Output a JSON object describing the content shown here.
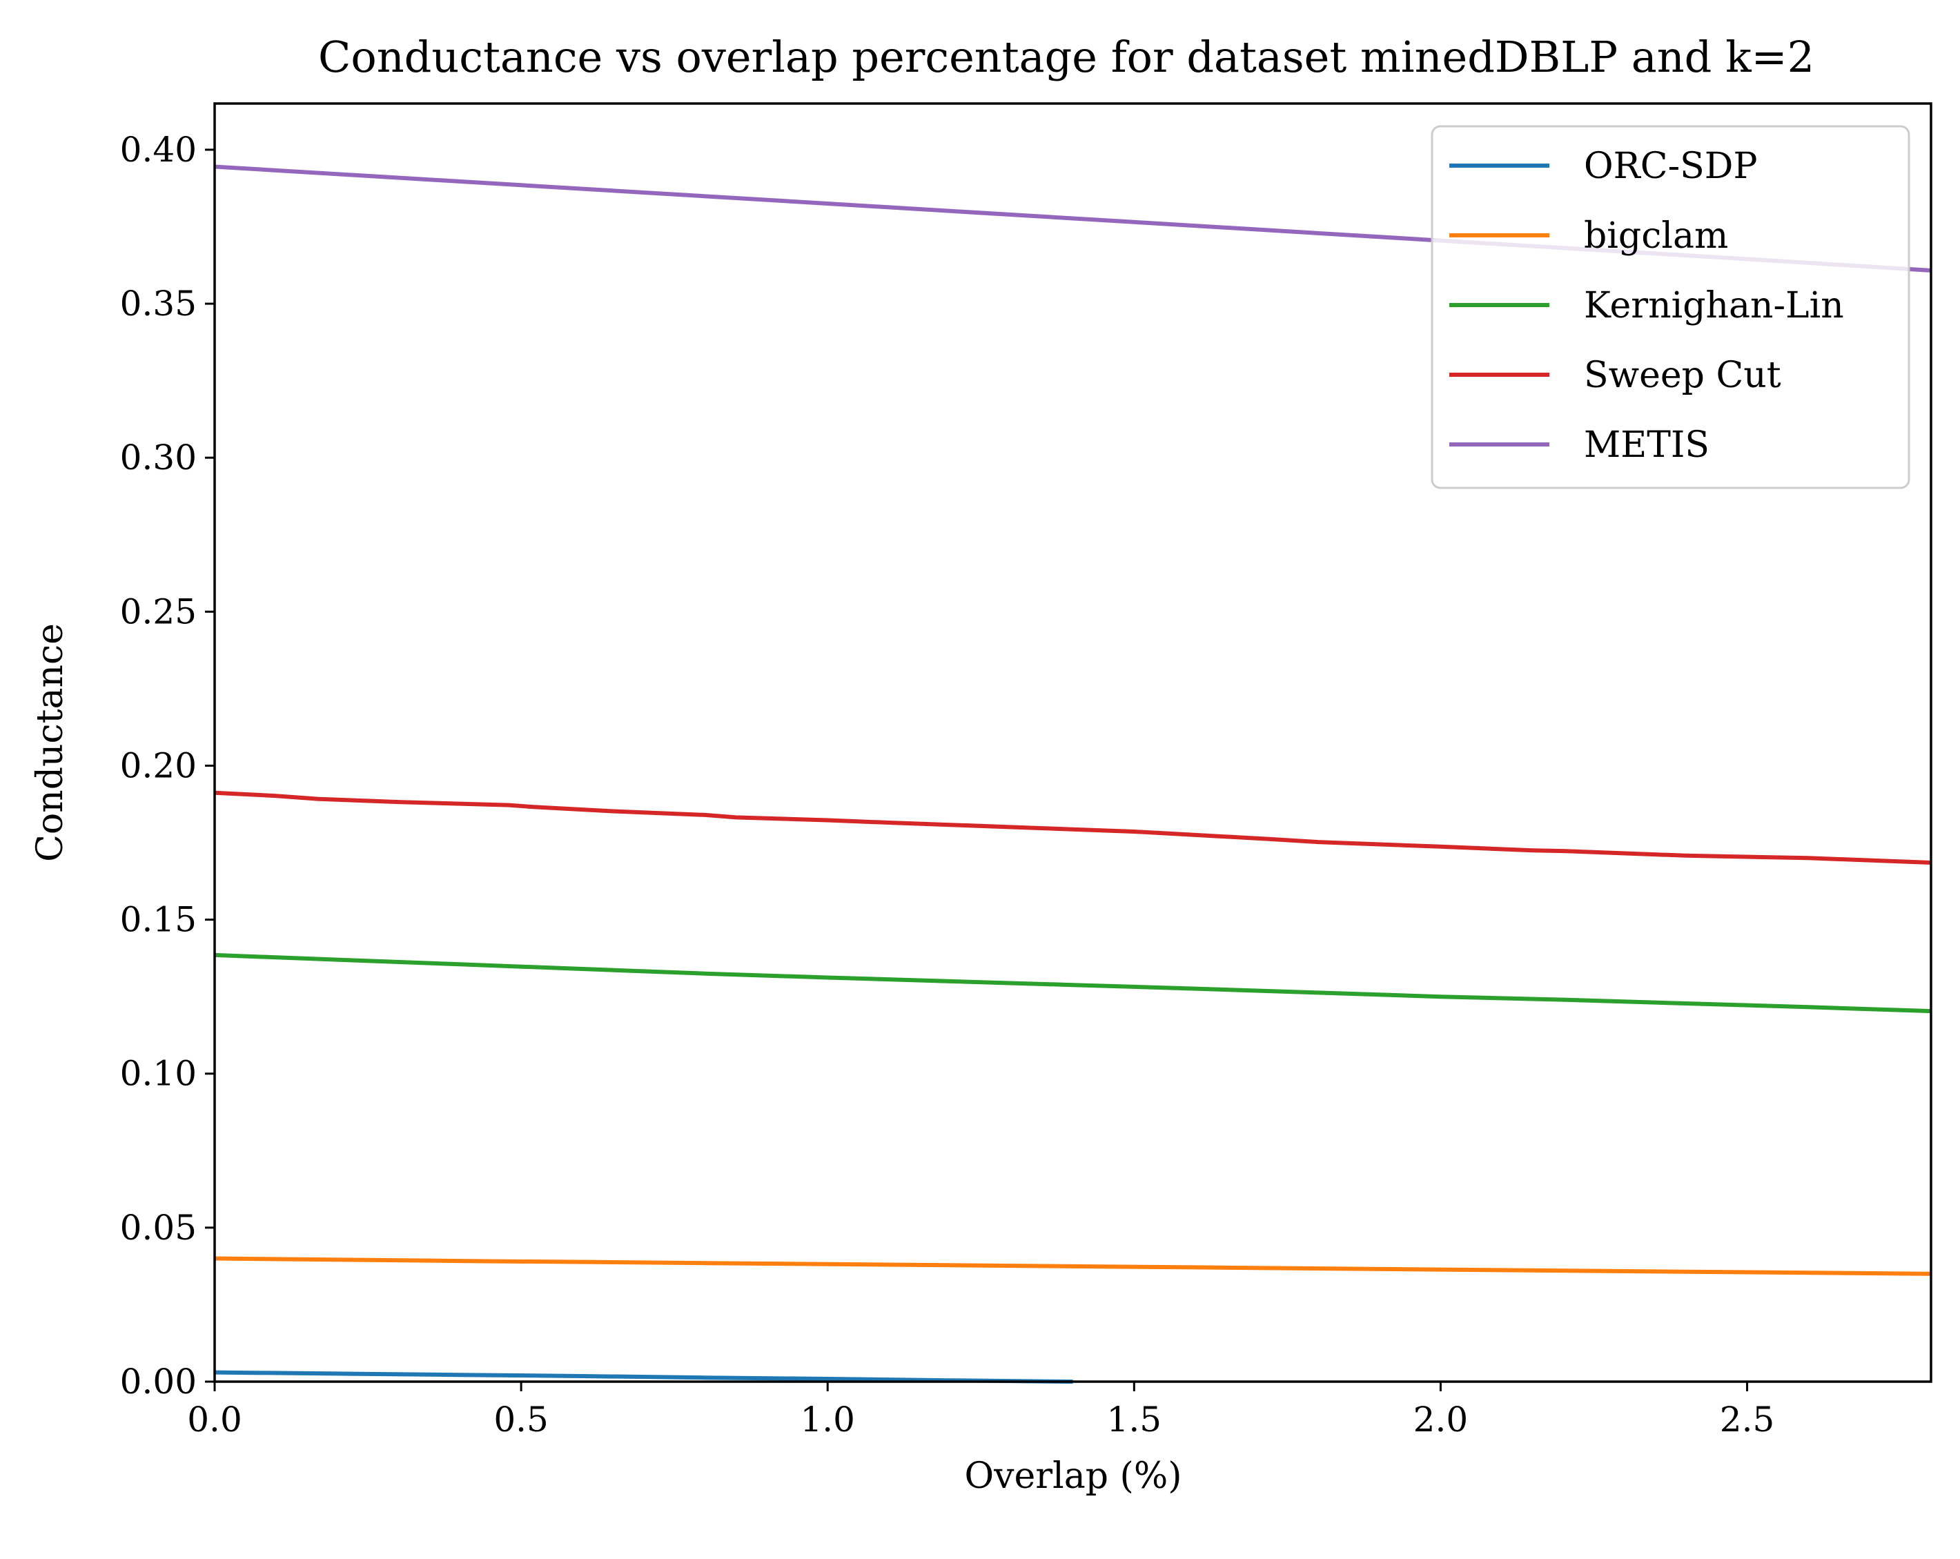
{
  "chart_data": {
    "type": "line",
    "title": "Conductance vs overlap percentage for dataset minedDBLP and k=2",
    "xlabel": "Overlap (%)",
    "ylabel": "Conductance",
    "xlim": [
      0,
      2.8
    ],
    "ylim": [
      0,
      0.415
    ],
    "xticks": [
      0,
      0.5,
      1.0,
      1.5,
      2.0,
      2.5
    ],
    "xtick_labels": [
      "0.0",
      "0.5",
      "1.0",
      "1.5",
      "2.0",
      "2.5"
    ],
    "yticks": [
      0,
      0.05,
      0.1,
      0.15,
      0.2,
      0.25,
      0.3,
      0.35,
      0.4
    ],
    "ytick_labels": [
      "0.00",
      "0.05",
      "0.10",
      "0.15",
      "0.20",
      "0.25",
      "0.30",
      "0.35",
      "0.40"
    ],
    "grid": false,
    "legend_position": "top-right",
    "series": [
      {
        "name": "ORC-SDP",
        "color": "#1f77b4",
        "x": [
          0,
          0.2,
          0.4,
          0.6,
          0.8,
          1.0,
          1.2,
          1.4
        ],
        "y": [
          0.003,
          0.0026,
          0.0022,
          0.0018,
          0.0013,
          0.0009,
          0.0004,
          0.0
        ]
      },
      {
        "name": "bigclam",
        "color": "#ff7f0e",
        "x": [
          0,
          0.4,
          0.8,
          1.2,
          1.6,
          2.0,
          2.4,
          2.8
        ],
        "y": [
          0.04,
          0.0392,
          0.0385,
          0.0378,
          0.0371,
          0.0364,
          0.0357,
          0.035
        ]
      },
      {
        "name": "Kernighan-Lin",
        "color": "#2ca02c",
        "x": [
          0,
          0.2,
          0.4,
          0.6,
          0.8,
          1.0,
          1.2,
          1.4,
          1.6,
          1.8,
          2.0,
          2.2,
          2.4,
          2.6,
          2.8
        ],
        "y": [
          0.1385,
          0.137,
          0.1355,
          0.134,
          0.1325,
          0.1312,
          0.13,
          0.1288,
          0.1276,
          0.1263,
          0.125,
          0.124,
          0.1228,
          0.1216,
          0.1203
        ]
      },
      {
        "name": "Sweep Cut",
        "color": "#d62728",
        "x": [
          0,
          0.1,
          0.17,
          0.3,
          0.48,
          0.52,
          0.65,
          0.8,
          0.85,
          1.0,
          1.1,
          1.2,
          1.35,
          1.5,
          1.6,
          1.72,
          1.8,
          2.0,
          2.15,
          2.2,
          2.4,
          2.6,
          2.8
        ],
        "y": [
          0.1912,
          0.1902,
          0.1892,
          0.1882,
          0.1872,
          0.1866,
          0.1852,
          0.184,
          0.1832,
          0.1823,
          0.1815,
          0.1808,
          0.1797,
          0.1786,
          0.1775,
          0.1762,
          0.1752,
          0.1737,
          0.1725,
          0.1723,
          0.1708,
          0.17,
          0.1685
        ]
      },
      {
        "name": "METIS",
        "color": "#9467bd",
        "x": [
          0,
          0.5,
          1.0,
          1.5,
          2.0,
          2.5,
          2.8
        ],
        "y": [
          0.3945,
          0.3885,
          0.3825,
          0.3765,
          0.3705,
          0.3645,
          0.3608
        ]
      }
    ]
  }
}
